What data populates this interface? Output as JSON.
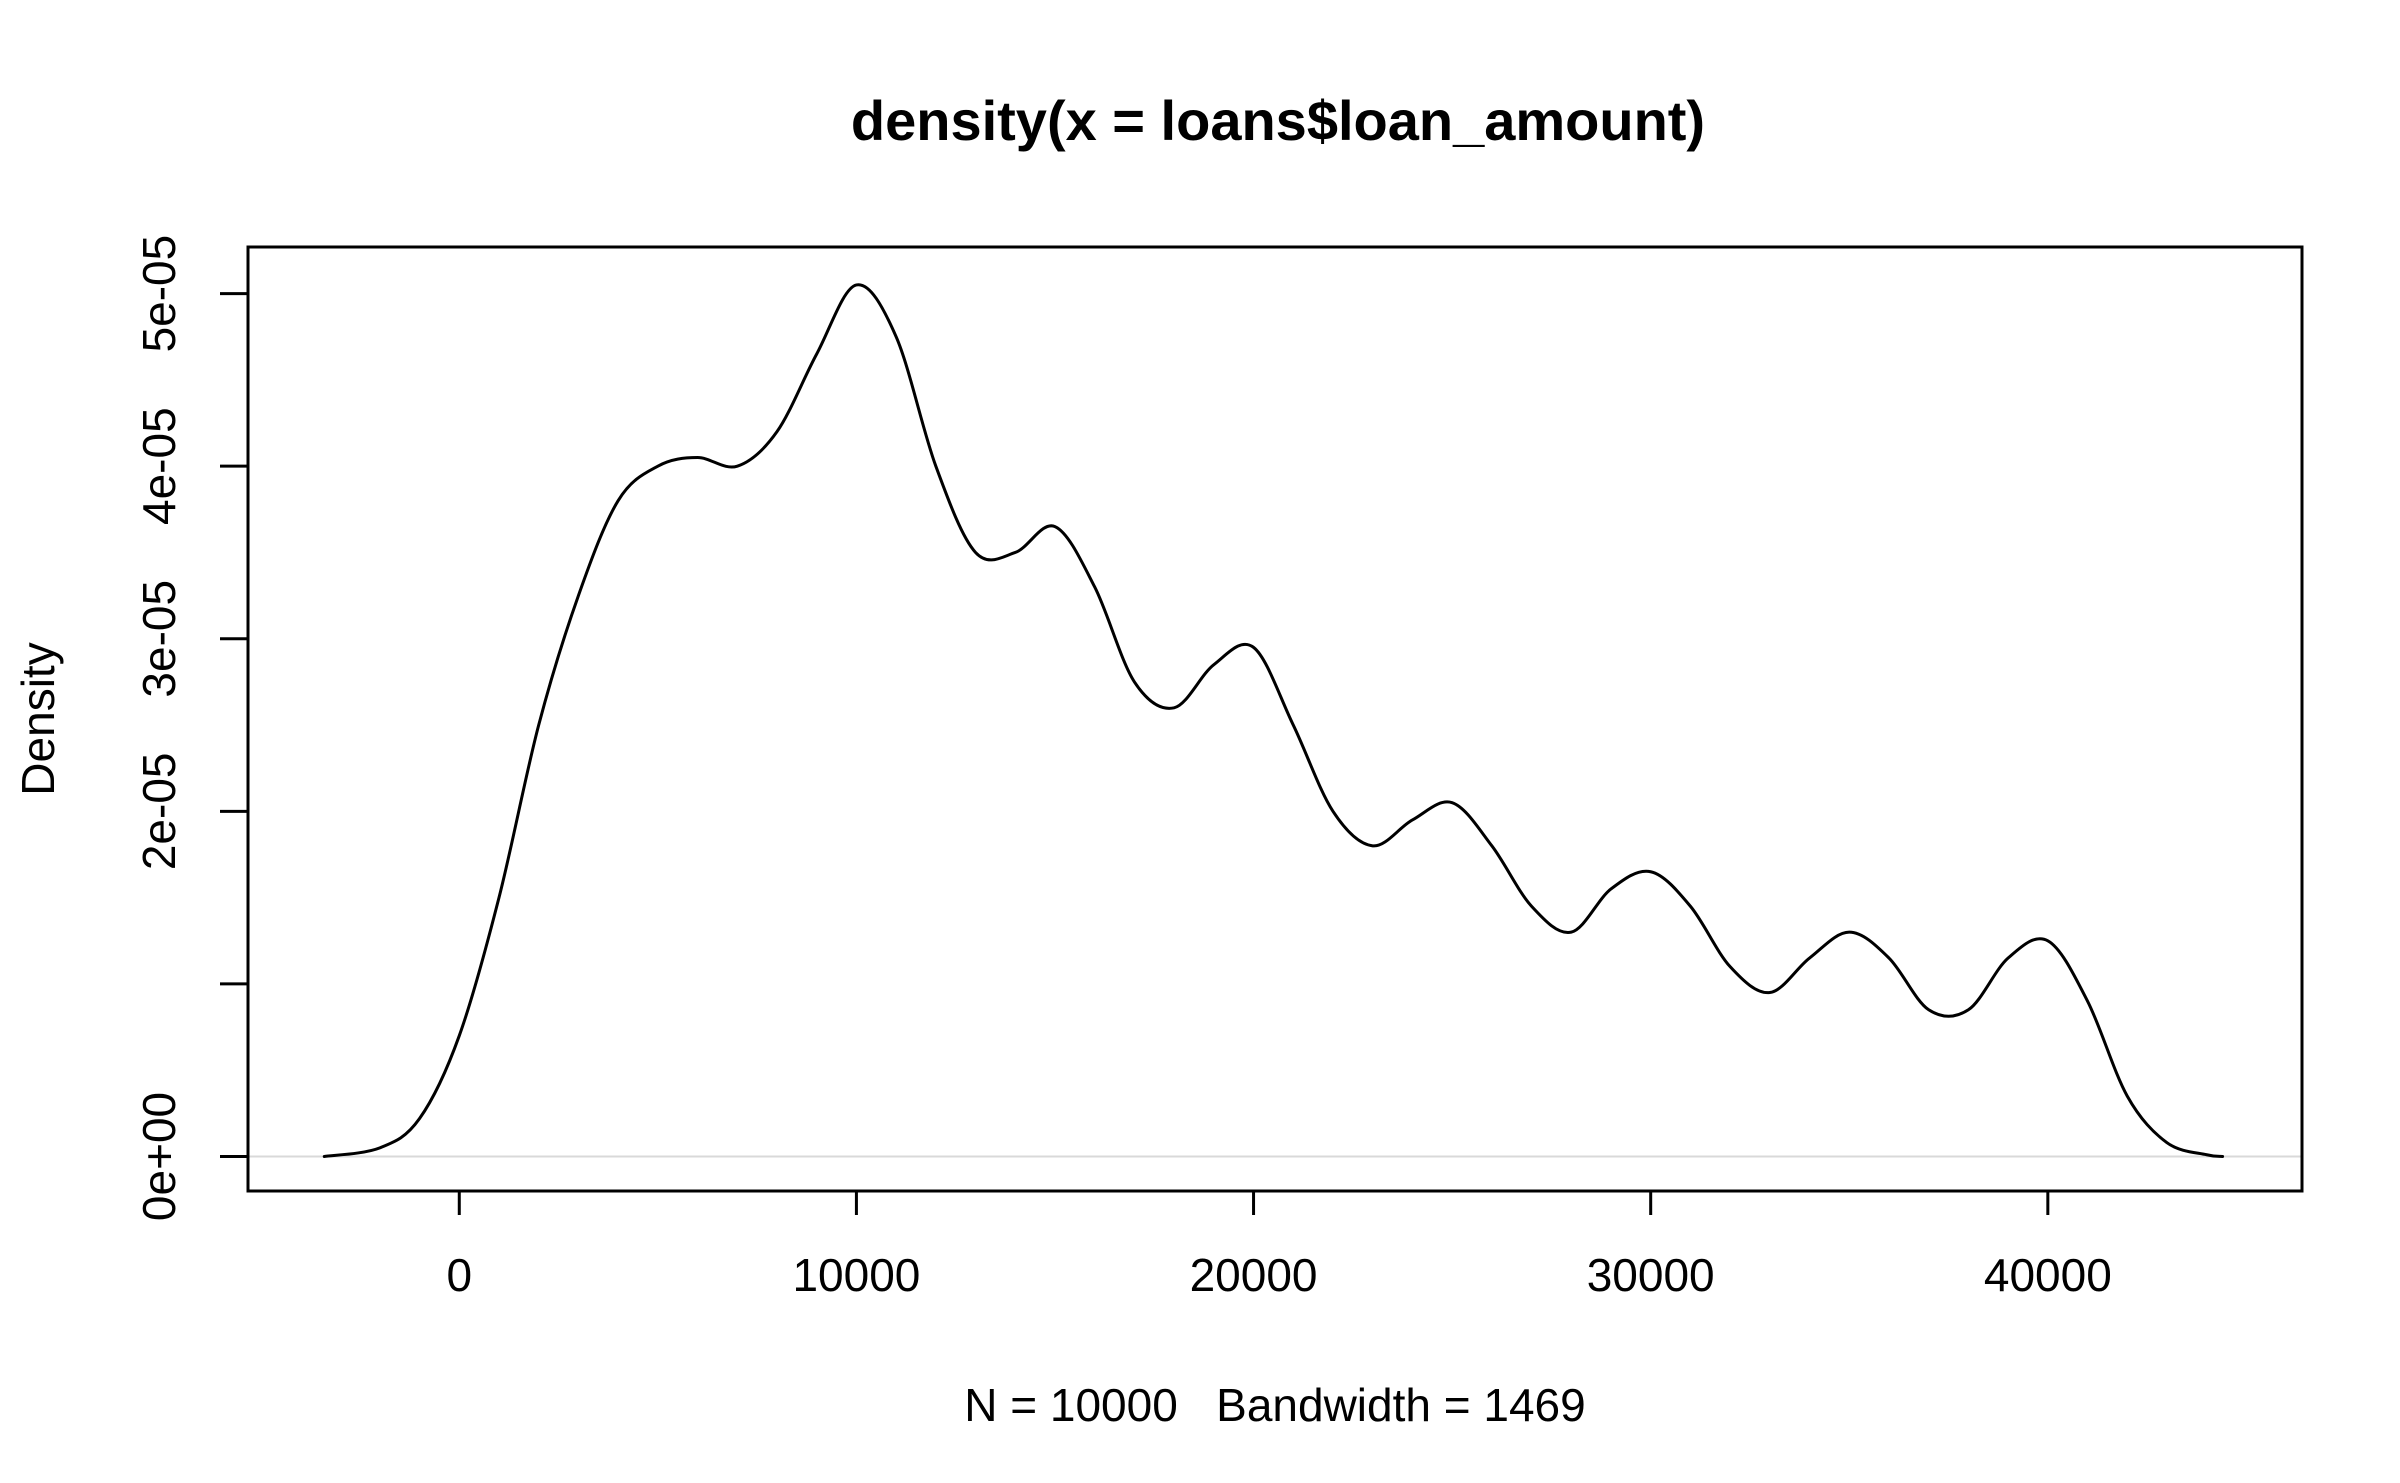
{
  "chart_data": {
    "type": "line",
    "title": "density(x = loans$loan_amount)",
    "xlabel": "N = 10000   Bandwidth = 1469",
    "ylabel": "Density",
    "xlim": [
      -5320,
      46400
    ],
    "ylim": [
      -2e-06,
      5.27e-05
    ],
    "x_ticks": [
      0,
      10000,
      20000,
      30000,
      40000
    ],
    "x_tick_labels": [
      "0",
      "10000",
      "20000",
      "30000",
      "40000"
    ],
    "y_ticks": [
      0,
      1e-05,
      2e-05,
      3e-05,
      4e-05,
      5e-05
    ],
    "y_tick_labels": [
      "0e+00",
      "",
      "2e-05",
      "3e-05",
      "4e-05",
      "5e-05"
    ],
    "grid": false,
    "zero_line": true,
    "colors": {
      "line": "#000000",
      "zero_line": "#d9d9d9",
      "frame": "#000000"
    },
    "series": [
      {
        "x": [
          -3400,
          -2000,
          -1000,
          0,
          1000,
          2000,
          3000,
          4000,
          5000,
          6000,
          7000,
          8000,
          9000,
          10000,
          11000,
          12000,
          13000,
          14000,
          15000,
          16000,
          17000,
          18000,
          19000,
          20000,
          21000,
          22000,
          23000,
          24000,
          25000,
          26000,
          27000,
          28000,
          29000,
          30000,
          31000,
          32000,
          33000,
          34000,
          35000,
          36000,
          37000,
          38000,
          39000,
          40000,
          41000,
          42000,
          43000,
          44000,
          44400
        ],
        "y": [
          0,
          5e-07,
          2.2e-06,
          7e-06,
          1.5e-05,
          2.5e-05,
          3.25e-05,
          3.8e-05,
          4e-05,
          4.05e-05,
          4e-05,
          4.2e-05,
          4.65e-05,
          5.05e-05,
          4.75e-05,
          4e-05,
          3.5e-05,
          3.5e-05,
          3.65e-05,
          3.3e-05,
          2.75e-05,
          2.6e-05,
          2.85e-05,
          2.95e-05,
          2.5e-05,
          2e-05,
          1.8e-05,
          1.95e-05,
          2.05e-05,
          1.8e-05,
          1.45e-05,
          1.3e-05,
          1.55e-05,
          1.65e-05,
          1.45e-05,
          1.1e-05,
          9.5e-06,
          1.15e-05,
          1.3e-05,
          1.15e-05,
          8.5e-06,
          8.5e-06,
          1.15e-05,
          1.25e-05,
          9e-06,
          3.5e-06,
          8e-07,
          1e-07,
          0
        ]
      }
    ]
  }
}
